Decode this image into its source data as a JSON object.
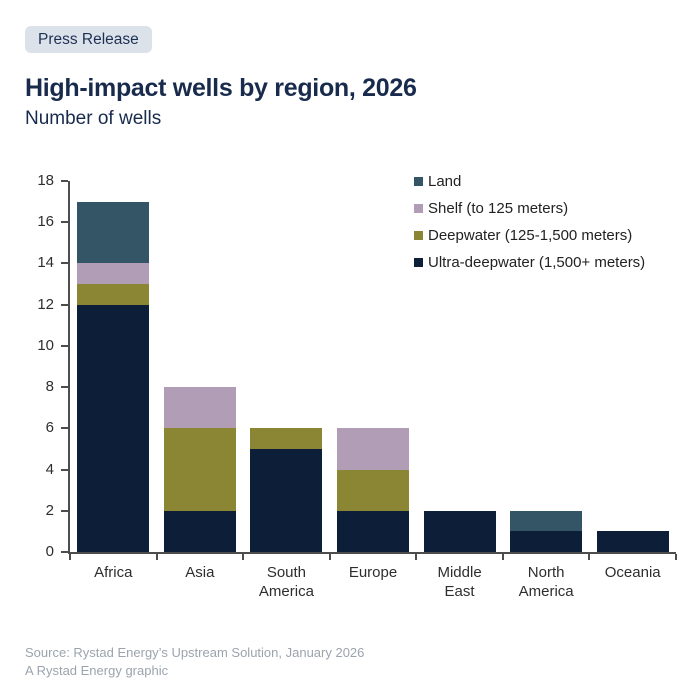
{
  "badge": {
    "label": "Press Release"
  },
  "header": {
    "title": "High-impact wells by region, 2026",
    "subtitle": "Number of wells"
  },
  "footer": {
    "source": "Source: Rystad Energy’s Upstream Solution, January 2026",
    "credit": "A Rystad Energy graphic"
  },
  "colors": {
    "land": "#345566",
    "shelf": "#b19db5",
    "deepwater": "#8a8634",
    "ultra_deepwater": "#0c1e38",
    "title_navy": "#192b4d",
    "badge_bg": "#dce2ea",
    "footer_gray": "#9ba4ad",
    "axis": "#4d4d4d"
  },
  "chart_data": {
    "type": "bar",
    "stacked": true,
    "title": "High-impact wells by region, 2026",
    "subtitle": "Number of wells",
    "xlabel": "",
    "ylabel": "Number of wells",
    "ylim": [
      0,
      18
    ],
    "ytick_step": 2,
    "grid": false,
    "legend_position": "top-right",
    "categories": [
      "Africa",
      "Asia",
      "South America",
      "Europe",
      "Middle East",
      "North America",
      "Oceania"
    ],
    "series": [
      {
        "name": "Land",
        "color": "#345566",
        "values": [
          3,
          0,
          0,
          0,
          0,
          1,
          0
        ]
      },
      {
        "name": "Shelf (to 125 meters)",
        "color": "#b19db5",
        "values": [
          1,
          2,
          0,
          2,
          0,
          0,
          0
        ]
      },
      {
        "name": "Deepwater (125-1,500 meters)",
        "color": "#8a8634",
        "values": [
          1,
          4,
          1,
          2,
          0,
          0,
          0
        ]
      },
      {
        "name": "Ultra-deepwater (1,500+ meters)",
        "color": "#0c1e38",
        "values": [
          12,
          2,
          5,
          2,
          2,
          1,
          1
        ]
      }
    ],
    "totals": [
      17,
      8,
      6,
      6,
      2,
      2,
      1
    ]
  }
}
